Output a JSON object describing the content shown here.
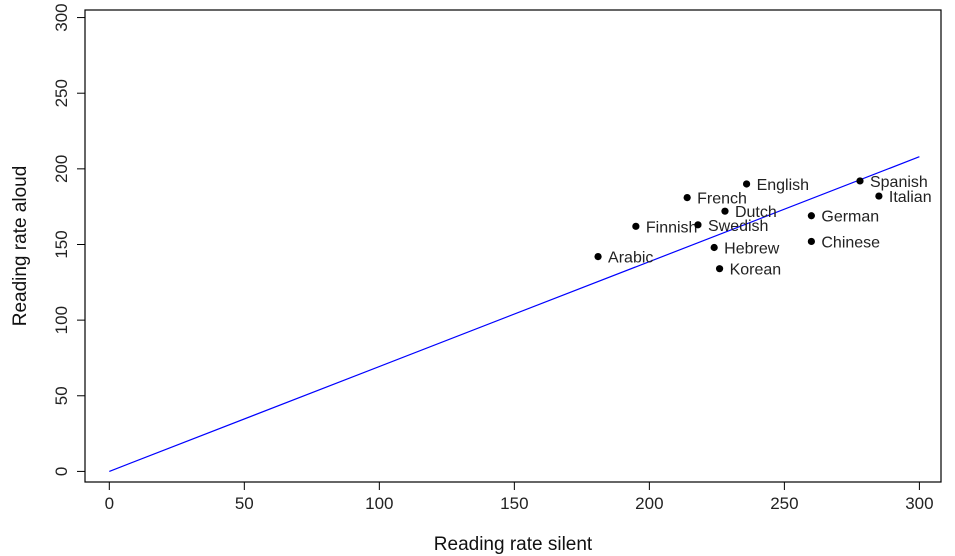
{
  "chart_data": {
    "type": "scatter",
    "xlabel": "Reading rate silent",
    "ylabel": "Reading rate aloud",
    "xlim": [
      -9,
      308
    ],
    "ylim": [
      -7,
      305
    ],
    "x_ticks": [
      0,
      50,
      100,
      150,
      200,
      250,
      300
    ],
    "y_ticks": [
      0,
      50,
      100,
      150,
      200,
      250,
      300
    ],
    "grid": false,
    "points": [
      {
        "label": "English",
        "x": 236,
        "y": 190
      },
      {
        "label": "French",
        "x": 214,
        "y": 181
      },
      {
        "label": "Dutch",
        "x": 228,
        "y": 172
      },
      {
        "label": "Finnish",
        "x": 195,
        "y": 162
      },
      {
        "label": "Swedish",
        "x": 218,
        "y": 163
      },
      {
        "label": "Arabic",
        "x": 181,
        "y": 142
      },
      {
        "label": "Hebrew",
        "x": 224,
        "y": 148
      },
      {
        "label": "Korean",
        "x": 226,
        "y": 134
      },
      {
        "label": "Spanish",
        "x": 278,
        "y": 192
      },
      {
        "label": "Italian",
        "x": 285,
        "y": 182
      },
      {
        "label": "German",
        "x": 260,
        "y": 169
      },
      {
        "label": "Chinese",
        "x": 260,
        "y": 152
      }
    ],
    "fit_line": {
      "x": [
        0,
        300
      ],
      "y": [
        0,
        208
      ]
    },
    "colors": {
      "points": "#000000",
      "fit_line": "#0000ff",
      "axes": "#000000"
    }
  }
}
